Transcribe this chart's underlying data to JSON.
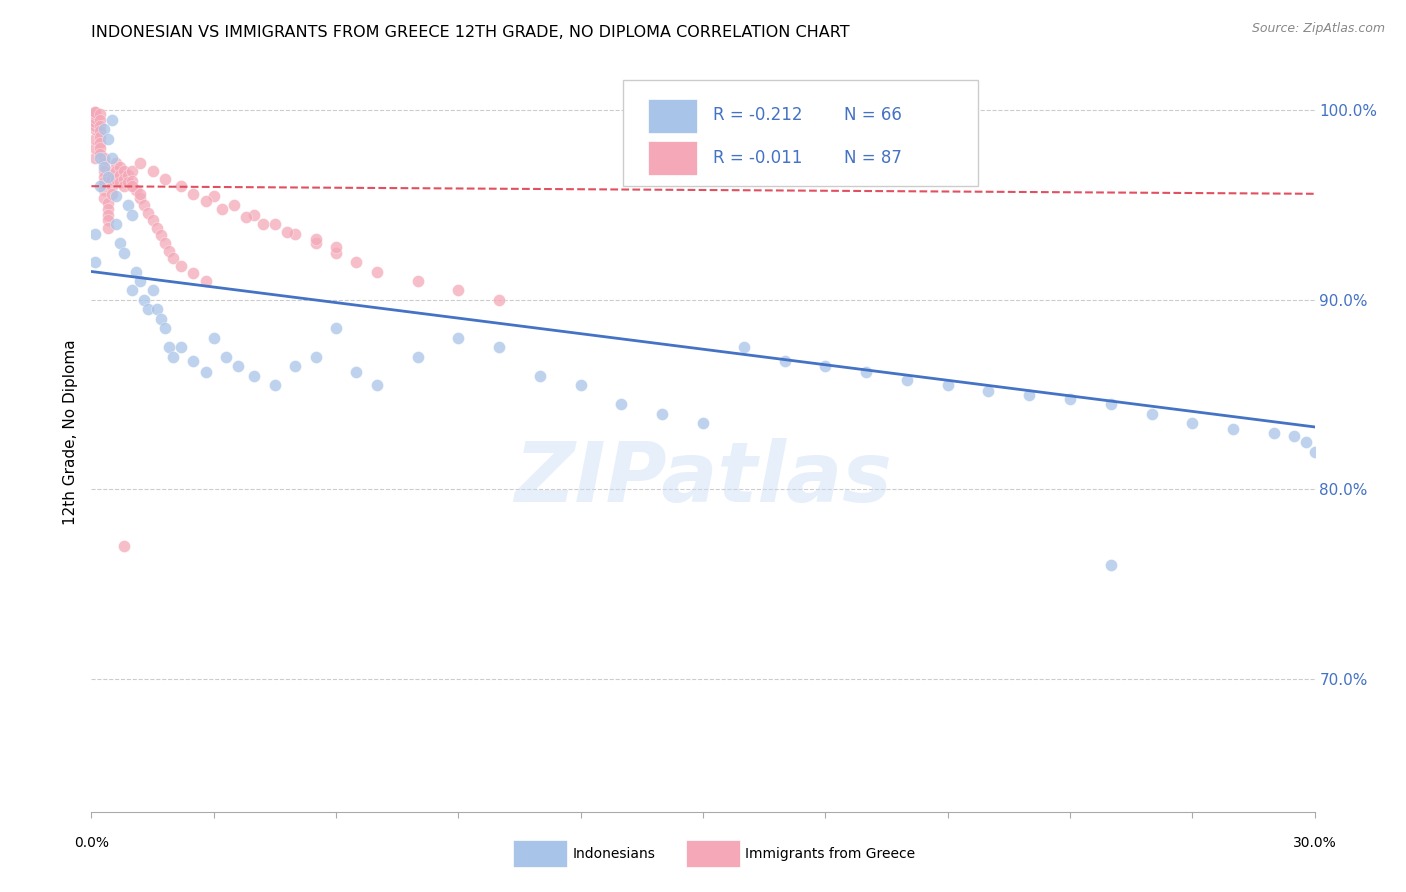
{
  "title": "INDONESIAN VS IMMIGRANTS FROM GREECE 12TH GRADE, NO DIPLOMA CORRELATION CHART",
  "source": "Source: ZipAtlas.com",
  "ylabel": "12th Grade, No Diploma",
  "xmin": 0.0,
  "xmax": 0.3,
  "ymin": 0.63,
  "ymax": 1.03,
  "blue_color": "#a8c4e8",
  "pink_color": "#f4a8b8",
  "blue_line_color": "#4472c4",
  "pink_line_color": "#e05060",
  "legend_r_blue": "R = -0.212",
  "legend_n_blue": "N = 66",
  "legend_r_pink": "R = -0.011",
  "legend_n_pink": "N = 87",
  "legend_label_blue": "Indonesians",
  "legend_label_pink": "Immigrants from Greece",
  "watermark": "ZIPatlas",
  "blue_x": [
    0.001,
    0.001,
    0.002,
    0.002,
    0.003,
    0.003,
    0.004,
    0.004,
    0.005,
    0.005,
    0.006,
    0.006,
    0.007,
    0.008,
    0.009,
    0.01,
    0.01,
    0.011,
    0.012,
    0.013,
    0.014,
    0.015,
    0.016,
    0.017,
    0.018,
    0.019,
    0.02,
    0.022,
    0.025,
    0.028,
    0.03,
    0.033,
    0.036,
    0.04,
    0.045,
    0.05,
    0.055,
    0.06,
    0.065,
    0.07,
    0.08,
    0.09,
    0.1,
    0.11,
    0.12,
    0.13,
    0.14,
    0.15,
    0.16,
    0.17,
    0.18,
    0.19,
    0.2,
    0.21,
    0.22,
    0.23,
    0.24,
    0.25,
    0.26,
    0.27,
    0.28,
    0.29,
    0.295,
    0.298,
    0.3,
    0.25
  ],
  "blue_y": [
    0.935,
    0.92,
    0.96,
    0.975,
    0.97,
    0.99,
    0.985,
    0.965,
    0.995,
    0.975,
    0.955,
    0.94,
    0.93,
    0.925,
    0.95,
    0.945,
    0.905,
    0.915,
    0.91,
    0.9,
    0.895,
    0.905,
    0.895,
    0.89,
    0.885,
    0.875,
    0.87,
    0.875,
    0.868,
    0.862,
    0.88,
    0.87,
    0.865,
    0.86,
    0.855,
    0.865,
    0.87,
    0.885,
    0.862,
    0.855,
    0.87,
    0.88,
    0.875,
    0.86,
    0.855,
    0.845,
    0.84,
    0.835,
    0.875,
    0.868,
    0.865,
    0.862,
    0.858,
    0.855,
    0.852,
    0.85,
    0.848,
    0.845,
    0.84,
    0.835,
    0.832,
    0.83,
    0.828,
    0.825,
    0.82,
    0.76
  ],
  "pink_x": [
    0.001,
    0.001,
    0.001,
    0.001,
    0.001,
    0.001,
    0.001,
    0.001,
    0.001,
    0.001,
    0.002,
    0.002,
    0.002,
    0.002,
    0.002,
    0.002,
    0.002,
    0.002,
    0.003,
    0.003,
    0.003,
    0.003,
    0.003,
    0.003,
    0.003,
    0.004,
    0.004,
    0.004,
    0.004,
    0.004,
    0.005,
    0.005,
    0.005,
    0.005,
    0.006,
    0.006,
    0.006,
    0.007,
    0.007,
    0.007,
    0.008,
    0.008,
    0.008,
    0.009,
    0.009,
    0.01,
    0.01,
    0.011,
    0.012,
    0.013,
    0.014,
    0.015,
    0.016,
    0.017,
    0.018,
    0.019,
    0.02,
    0.022,
    0.025,
    0.028,
    0.03,
    0.035,
    0.04,
    0.045,
    0.05,
    0.055,
    0.06,
    0.065,
    0.07,
    0.08,
    0.09,
    0.1,
    0.012,
    0.015,
    0.018,
    0.022,
    0.025,
    0.028,
    0.032,
    0.038,
    0.042,
    0.048,
    0.055,
    0.06,
    0.008,
    0.01,
    0.012
  ],
  "pink_y": [
    0.975,
    0.98,
    0.985,
    0.99,
    0.992,
    0.994,
    0.996,
    0.998,
    0.999,
    0.999,
    0.998,
    0.995,
    0.992,
    0.989,
    0.986,
    0.983,
    0.98,
    0.977,
    0.975,
    0.972,
    0.968,
    0.965,
    0.962,
    0.958,
    0.954,
    0.951,
    0.948,
    0.945,
    0.942,
    0.938,
    0.968,
    0.964,
    0.96,
    0.956,
    0.972,
    0.968,
    0.964,
    0.97,
    0.966,
    0.962,
    0.968,
    0.964,
    0.96,
    0.966,
    0.962,
    0.968,
    0.963,
    0.958,
    0.954,
    0.95,
    0.946,
    0.942,
    0.938,
    0.934,
    0.93,
    0.926,
    0.922,
    0.918,
    0.914,
    0.91,
    0.955,
    0.95,
    0.945,
    0.94,
    0.935,
    0.93,
    0.925,
    0.92,
    0.915,
    0.91,
    0.905,
    0.9,
    0.972,
    0.968,
    0.964,
    0.96,
    0.956,
    0.952,
    0.948,
    0.944,
    0.94,
    0.936,
    0.932,
    0.928,
    0.77,
    0.96,
    0.956
  ]
}
